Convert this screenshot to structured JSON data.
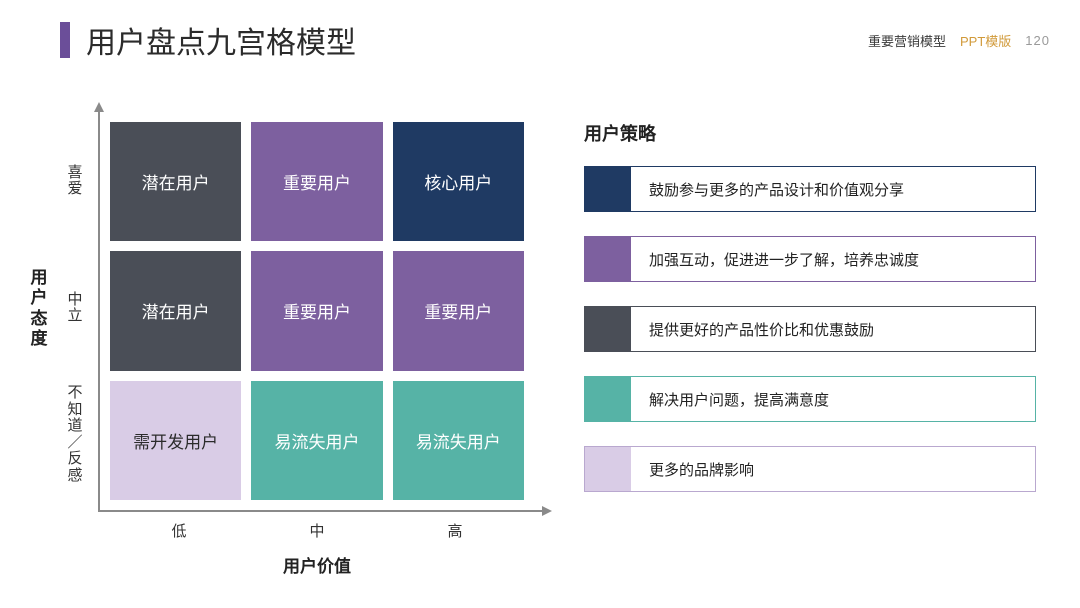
{
  "header": {
    "title": "用户盘点九宫格模型",
    "label1": "重要营销模型",
    "label2": "PPT模版",
    "page": "120",
    "accent_bar_color": "#6b4e99"
  },
  "matrix": {
    "y_axis_title": "用户态度",
    "x_axis_title": "用户价值",
    "y_labels": [
      "喜爱",
      "中立",
      "不知道／反感"
    ],
    "x_labels": [
      "低",
      "中",
      "高"
    ],
    "cells": [
      {
        "label": "潜在用户",
        "bg": "#4a4e57",
        "text_color": "#ffffff"
      },
      {
        "label": "重要用户",
        "bg": "#7d609f",
        "text_color": "#ffffff"
      },
      {
        "label": "核心用户",
        "bg": "#1f3a63",
        "text_color": "#ffffff"
      },
      {
        "label": "潜在用户",
        "bg": "#4a4e57",
        "text_color": "#ffffff"
      },
      {
        "label": "重要用户",
        "bg": "#7d609f",
        "text_color": "#ffffff"
      },
      {
        "label": "重要用户",
        "bg": "#7d609f",
        "text_color": "#ffffff"
      },
      {
        "label": "需开发用户",
        "bg": "#d9cce6",
        "text_color": "#2b2b2b"
      },
      {
        "label": "易流失用户",
        "bg": "#56b3a6",
        "text_color": "#ffffff"
      },
      {
        "label": "易流失用户",
        "bg": "#56b3a6",
        "text_color": "#ffffff"
      }
    ],
    "axis_color": "#8a8a8a"
  },
  "strategy": {
    "title": "用户策略",
    "items": [
      {
        "color": "#1f3a63",
        "border": "#1f3a63",
        "text": "鼓励参与更多的产品设计和价值观分享"
      },
      {
        "color": "#7d609f",
        "border": "#7d609f",
        "text": "加强互动，促进进一步了解，培养忠诚度"
      },
      {
        "color": "#4a4e57",
        "border": "#4a4e57",
        "text": "提供更好的产品性价比和优惠鼓励"
      },
      {
        "color": "#56b3a6",
        "border": "#56b3a6",
        "text": "解决用户问题，提高满意度"
      },
      {
        "color": "#d9cce6",
        "border": "#b9a8cf",
        "text": "更多的品牌影响"
      }
    ]
  }
}
